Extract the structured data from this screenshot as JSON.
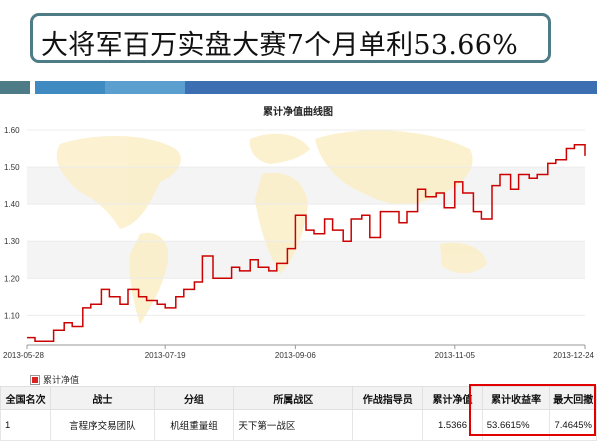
{
  "headline": "大将军百万实盘大赛7个月单利53.66%",
  "colors": {
    "title_border": "#4e7c86",
    "strip": [
      "#4e7c86",
      "#ffffff",
      "#3f8ac0",
      "#5a9fd0",
      "#3b6fb2"
    ],
    "line": "#cc0000",
    "highlight": "#e00000"
  },
  "chart_data": {
    "type": "line",
    "title": "累计净值曲线图",
    "x_ticks": [
      "2013-05-28",
      "2013-07-19",
      "2013-09-06",
      "2013-11-05",
      "2013-12-24"
    ],
    "y_ticks": [
      "1.10",
      "1.20",
      "1.30",
      "1.40",
      "1.50",
      "1.60"
    ],
    "ylim": [
      1.02,
      1.6
    ],
    "grid": true,
    "legend": "bottom-left",
    "series": [
      {
        "name": "累计净值",
        "x": [
          "2013-05-28",
          "2013-05-31",
          "2013-06-04",
          "2013-06-07",
          "2013-06-11",
          "2013-06-14",
          "2013-06-18",
          "2013-06-21",
          "2013-06-25",
          "2013-06-28",
          "2013-07-02",
          "2013-07-05",
          "2013-07-09",
          "2013-07-12",
          "2013-07-16",
          "2013-07-19",
          "2013-07-23",
          "2013-07-26",
          "2013-07-30",
          "2013-08-02",
          "2013-08-06",
          "2013-08-09",
          "2013-08-13",
          "2013-08-16",
          "2013-08-20",
          "2013-08-23",
          "2013-08-27",
          "2013-08-30",
          "2013-09-03",
          "2013-09-06",
          "2013-09-10",
          "2013-09-13",
          "2013-09-17",
          "2013-09-20",
          "2013-09-24",
          "2013-09-27",
          "2013-10-01",
          "2013-10-04",
          "2013-10-08",
          "2013-10-11",
          "2013-10-15",
          "2013-10-18",
          "2013-10-22",
          "2013-10-25",
          "2013-10-29",
          "2013-11-01",
          "2013-11-05",
          "2013-11-08",
          "2013-11-12",
          "2013-11-15",
          "2013-11-19",
          "2013-11-22",
          "2013-11-26",
          "2013-11-29",
          "2013-12-03",
          "2013-12-06",
          "2013-12-10",
          "2013-12-13",
          "2013-12-17",
          "2013-12-20",
          "2013-12-24"
        ],
        "y": [
          1.04,
          1.03,
          1.03,
          1.06,
          1.08,
          1.07,
          1.12,
          1.13,
          1.17,
          1.15,
          1.13,
          1.17,
          1.15,
          1.14,
          1.13,
          1.12,
          1.15,
          1.17,
          1.19,
          1.26,
          1.2,
          1.2,
          1.23,
          1.22,
          1.25,
          1.23,
          1.22,
          1.24,
          1.28,
          1.37,
          1.33,
          1.32,
          1.36,
          1.33,
          1.3,
          1.36,
          1.37,
          1.31,
          1.38,
          1.38,
          1.35,
          1.38,
          1.44,
          1.42,
          1.43,
          1.39,
          1.46,
          1.43,
          1.38,
          1.36,
          1.45,
          1.48,
          1.44,
          1.48,
          1.47,
          1.48,
          1.51,
          1.52,
          1.55,
          1.56,
          1.53
        ]
      }
    ]
  },
  "table": {
    "headers": [
      "全国名次",
      "战士",
      "分组",
      "所属战区",
      "作战指导员",
      "累计净值",
      "累计收益率",
      "最大回撤"
    ],
    "rows": [
      [
        "1",
        "言程序交易团队",
        "机组重量组",
        "天下第一战区",
        "",
        "1.5366",
        "53.6615%",
        "7.4645%"
      ]
    ]
  }
}
